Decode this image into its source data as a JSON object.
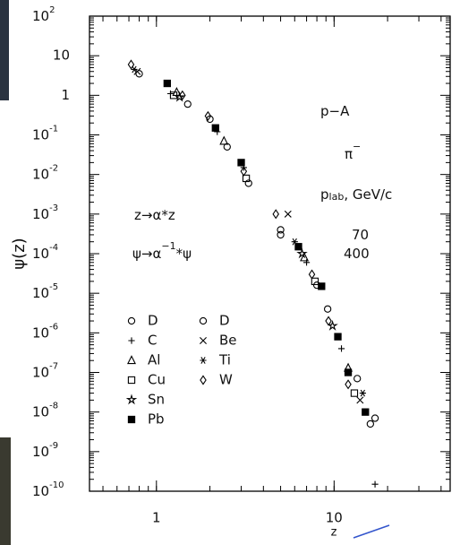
{
  "chart_data": {
    "type": "scatter",
    "x_label": "z",
    "y_label": "ψ(z)",
    "log_x": true,
    "log_y": true,
    "xlim": [
      0.42,
      45
    ],
    "ylim": [
      1e-10,
      100
    ],
    "xticks": [
      1,
      10
    ],
    "yticks": [
      {
        "value": 100,
        "label": "10",
        "exponent": "2"
      },
      10,
      1,
      {
        "value": 0.1,
        "label": "10",
        "exponent": "-1"
      },
      {
        "value": 0.01,
        "label": "10",
        "exponent": "-2"
      },
      {
        "value": 0.001,
        "label": "10",
        "exponent": "-3"
      },
      {
        "value": 0.0001,
        "label": "10",
        "exponent": "-4"
      },
      {
        "value": 1e-05,
        "label": "10",
        "exponent": "-5"
      },
      {
        "value": 1e-06,
        "label": "10",
        "exponent": "-6"
      },
      {
        "value": 1e-07,
        "label": "10",
        "exponent": "-7"
      },
      {
        "value": 1e-08,
        "label": "10",
        "exponent": "-8"
      },
      {
        "value": 1e-09,
        "label": "10",
        "exponent": "-9"
      },
      {
        "value": 1e-10,
        "label": "10",
        "exponent": "-10"
      }
    ],
    "annotations": [
      {
        "text": "p−A"
      },
      {
        "text": "π",
        "sup": "−"
      },
      {
        "text": "p",
        "sub": "lab",
        "tail": ",  GeV/c"
      },
      {
        "text": "70"
      },
      {
        "text": "400"
      },
      {
        "text": "z→α*z"
      },
      {
        "text": "ψ→α",
        "sup": "−1",
        "tail": "*ψ"
      }
    ],
    "series": [
      {
        "name": "D",
        "marker": "circle",
        "color": "#000000",
        "x": [
          0.8,
          1.5,
          2.5,
          3.3,
          5,
          9.2,
          13.5,
          17
        ],
        "values": [
          3.5,
          0.6,
          0.05,
          0.006,
          0.0004,
          4e-06,
          7e-08,
          7e-09
        ]
      },
      {
        "name": "C",
        "marker": "plus",
        "color": "#000000",
        "x": [
          1.2,
          2.2,
          3.1,
          7,
          11,
          17
        ],
        "values": [
          1.1,
          0.12,
          0.015,
          6e-05,
          4e-07,
          1.5e-10
        ]
      },
      {
        "name": "Al",
        "marker": "triangle",
        "color": "#000000",
        "x": [
          1.3,
          2.4,
          6.8,
          12
        ],
        "values": [
          1.2,
          0.07,
          8e-05,
          1.3e-07
        ]
      },
      {
        "name": "Cu",
        "marker": "square",
        "color": "#000000",
        "x": [
          1.25,
          3.2,
          7.8,
          13
        ],
        "values": [
          1,
          0.008,
          2e-05,
          3e-08
        ]
      },
      {
        "name": "Sn",
        "marker": "star",
        "color": "#000000",
        "x": [
          1.35,
          6.6,
          9.8
        ],
        "values": [
          0.9,
          0.0001,
          1.5e-06
        ]
      },
      {
        "name": "Pb",
        "marker": "filled-square",
        "color": "#000000",
        "x": [
          1.15,
          2.15,
          3,
          6.3,
          8.5,
          10.5,
          12,
          15
        ],
        "values": [
          2,
          0.15,
          0.02,
          0.00015,
          1.5e-05,
          8e-07,
          1e-07,
          1e-08
        ]
      },
      {
        "name": "D",
        "marker": "circle",
        "color": "#000000",
        "x": [
          2.0,
          5,
          8,
          16
        ],
        "values": [
          0.25,
          0.0003,
          1.6e-05,
          5e-09
        ]
      },
      {
        "name": "Be",
        "marker": "cross",
        "color": "#000000",
        "x": [
          0.78,
          5.5,
          14
        ],
        "values": [
          4,
          0.001,
          2e-08
        ]
      },
      {
        "name": "Ti",
        "marker": "asterisk",
        "color": "#000000",
        "x": [
          0.75,
          6,
          14.5
        ],
        "values": [
          4.5,
          0.0002,
          3e-08
        ]
      },
      {
        "name": "W",
        "marker": "diamond",
        "color": "#000000",
        "x": [
          0.72,
          1.4,
          1.95,
          3.1,
          4.7,
          7.5,
          9.3,
          12
        ],
        "values": [
          6,
          1,
          0.3,
          0.012,
          0.001,
          3e-05,
          2e-06,
          5e-08
        ]
      }
    ]
  }
}
